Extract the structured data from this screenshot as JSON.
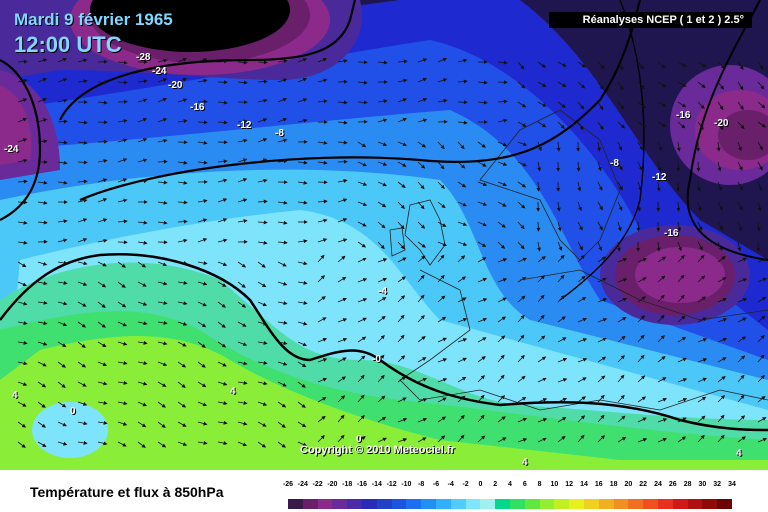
{
  "header": {
    "date": "Mardi 9 février 1965",
    "time": "12:00 UTC",
    "source": "Réanalyses NCEP ( 1 et 2 ) 2.5°"
  },
  "copyright": "Copyright © 2010 Meteociel.fr",
  "footer_title": "Température et flux à 850hPa",
  "contour_labels": [
    "-28",
    "-24",
    "-20",
    "-16",
    "-12",
    "-8",
    "-24",
    "-16",
    "-20",
    "-8",
    "-12",
    "-16",
    "-4",
    "-0",
    "4",
    "0",
    "4",
    "0",
    "4",
    "4"
  ],
  "legend": {
    "ticks": [
      "-26",
      "-24",
      "-22",
      "-20",
      "-18",
      "-16",
      "-14",
      "-12",
      "-10",
      "-8",
      "-6",
      "-4",
      "-2",
      "0",
      "2",
      "4",
      "6",
      "8",
      "10",
      "12",
      "14",
      "16",
      "18",
      "20",
      "22",
      "24",
      "26",
      "28",
      "30",
      "32",
      "34"
    ],
    "colors": [
      "#3a1a4a",
      "#6a1f6a",
      "#8b2a8b",
      "#6a2a9a",
      "#4a2aa8",
      "#2a2ab8",
      "#2040c8",
      "#1a55e0",
      "#1a70f0",
      "#2090f5",
      "#30b0f8",
      "#50cdfa",
      "#7de6fb",
      "#a0f0f0",
      "#00d890",
      "#30e060",
      "#60e840",
      "#90ef30",
      "#c0f020",
      "#e8f020",
      "#f0d020",
      "#f0b020",
      "#f09020",
      "#f07020",
      "#f05020",
      "#e83020",
      "#d01818",
      "#b01010",
      "#900808",
      "#6a0404"
    ]
  }
}
